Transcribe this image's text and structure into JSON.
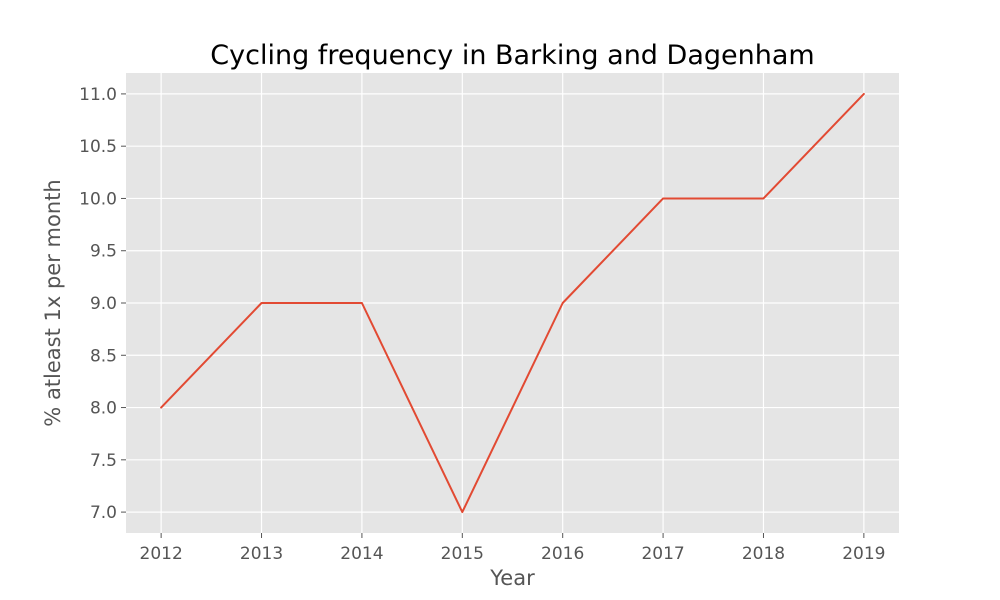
{
  "colors": {
    "plot_background": "#E5E5E5",
    "grid": "#FFFFFF",
    "line": "#E24A33",
    "tick": "#555555",
    "title": "#000000"
  },
  "chart_data": {
    "type": "line",
    "title": "Cycling frequency in Barking and Dagenham",
    "xlabel": "Year",
    "ylabel": "% atleast 1x per month",
    "x": [
      2012,
      2013,
      2014,
      2015,
      2016,
      2017,
      2018,
      2019
    ],
    "series": [
      {
        "values": [
          8.0,
          9.0,
          9.0,
          7.0,
          9.0,
          10.0,
          10.0,
          11.0
        ]
      }
    ],
    "xlim": [
      2011.65,
      2019.35
    ],
    "ylim": [
      6.8,
      11.2
    ],
    "xticks": [
      "2012",
      "2013",
      "2014",
      "2015",
      "2016",
      "2017",
      "2018",
      "2019"
    ],
    "yticks": [
      "7.0",
      "7.5",
      "8.0",
      "8.5",
      "9.0",
      "9.5",
      "10.0",
      "10.5",
      "11.0"
    ],
    "grid": true,
    "legend": "none"
  }
}
